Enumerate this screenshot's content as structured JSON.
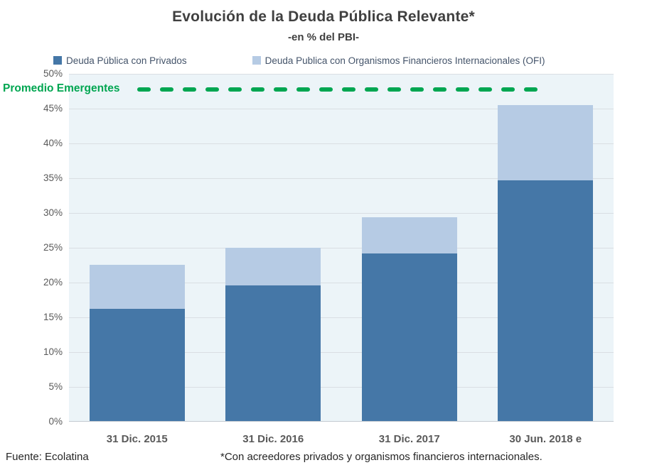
{
  "header": {
    "title": "Evolución de la Deuda Pública Relevante*",
    "subtitle": "-en % del PBI-"
  },
  "footer": {
    "source": "Fuente: Ecolatina",
    "note": "*Con acreedores privados y organismos financieros internacionales."
  },
  "colors": {
    "privados": "#4577A7",
    "ofi": "#B6CBE4",
    "reference_green": "#00A651",
    "plot_background": "#ECF4F8",
    "title_text": "#404040",
    "axis_text": "#595959"
  },
  "chart_data": {
    "type": "bar",
    "stacked": true,
    "title": "Evolución de la Deuda Pública Relevante*",
    "subtitle": "-en % del PBI-",
    "categories": [
      "31 Dic. 2015",
      "31 Dic. 2016",
      "31 Dic. 2017",
      "30 Jun. 2018 e"
    ],
    "series": [
      {
        "name": "Deuda Pública con Privados",
        "color": "#4577A7",
        "values": [
          16.2,
          19.6,
          24.2,
          34.7
        ]
      },
      {
        "name": "Deuda Publica con Organismos Financieros Internacionales (OFI)",
        "color": "#B6CBE4",
        "values": [
          6.4,
          5.4,
          5.2,
          10.8
        ]
      }
    ],
    "totals": [
      22.6,
      25.0,
      29.4,
      45.5
    ],
    "ylim": [
      0,
      50
    ],
    "ytick_step": 5,
    "ytick_format": "percent",
    "grid": true,
    "legend_position": "top",
    "reference_line": {
      "label": "Promedio Emergentes",
      "value": 47.8,
      "color": "#00A651",
      "style": "dashed"
    }
  }
}
